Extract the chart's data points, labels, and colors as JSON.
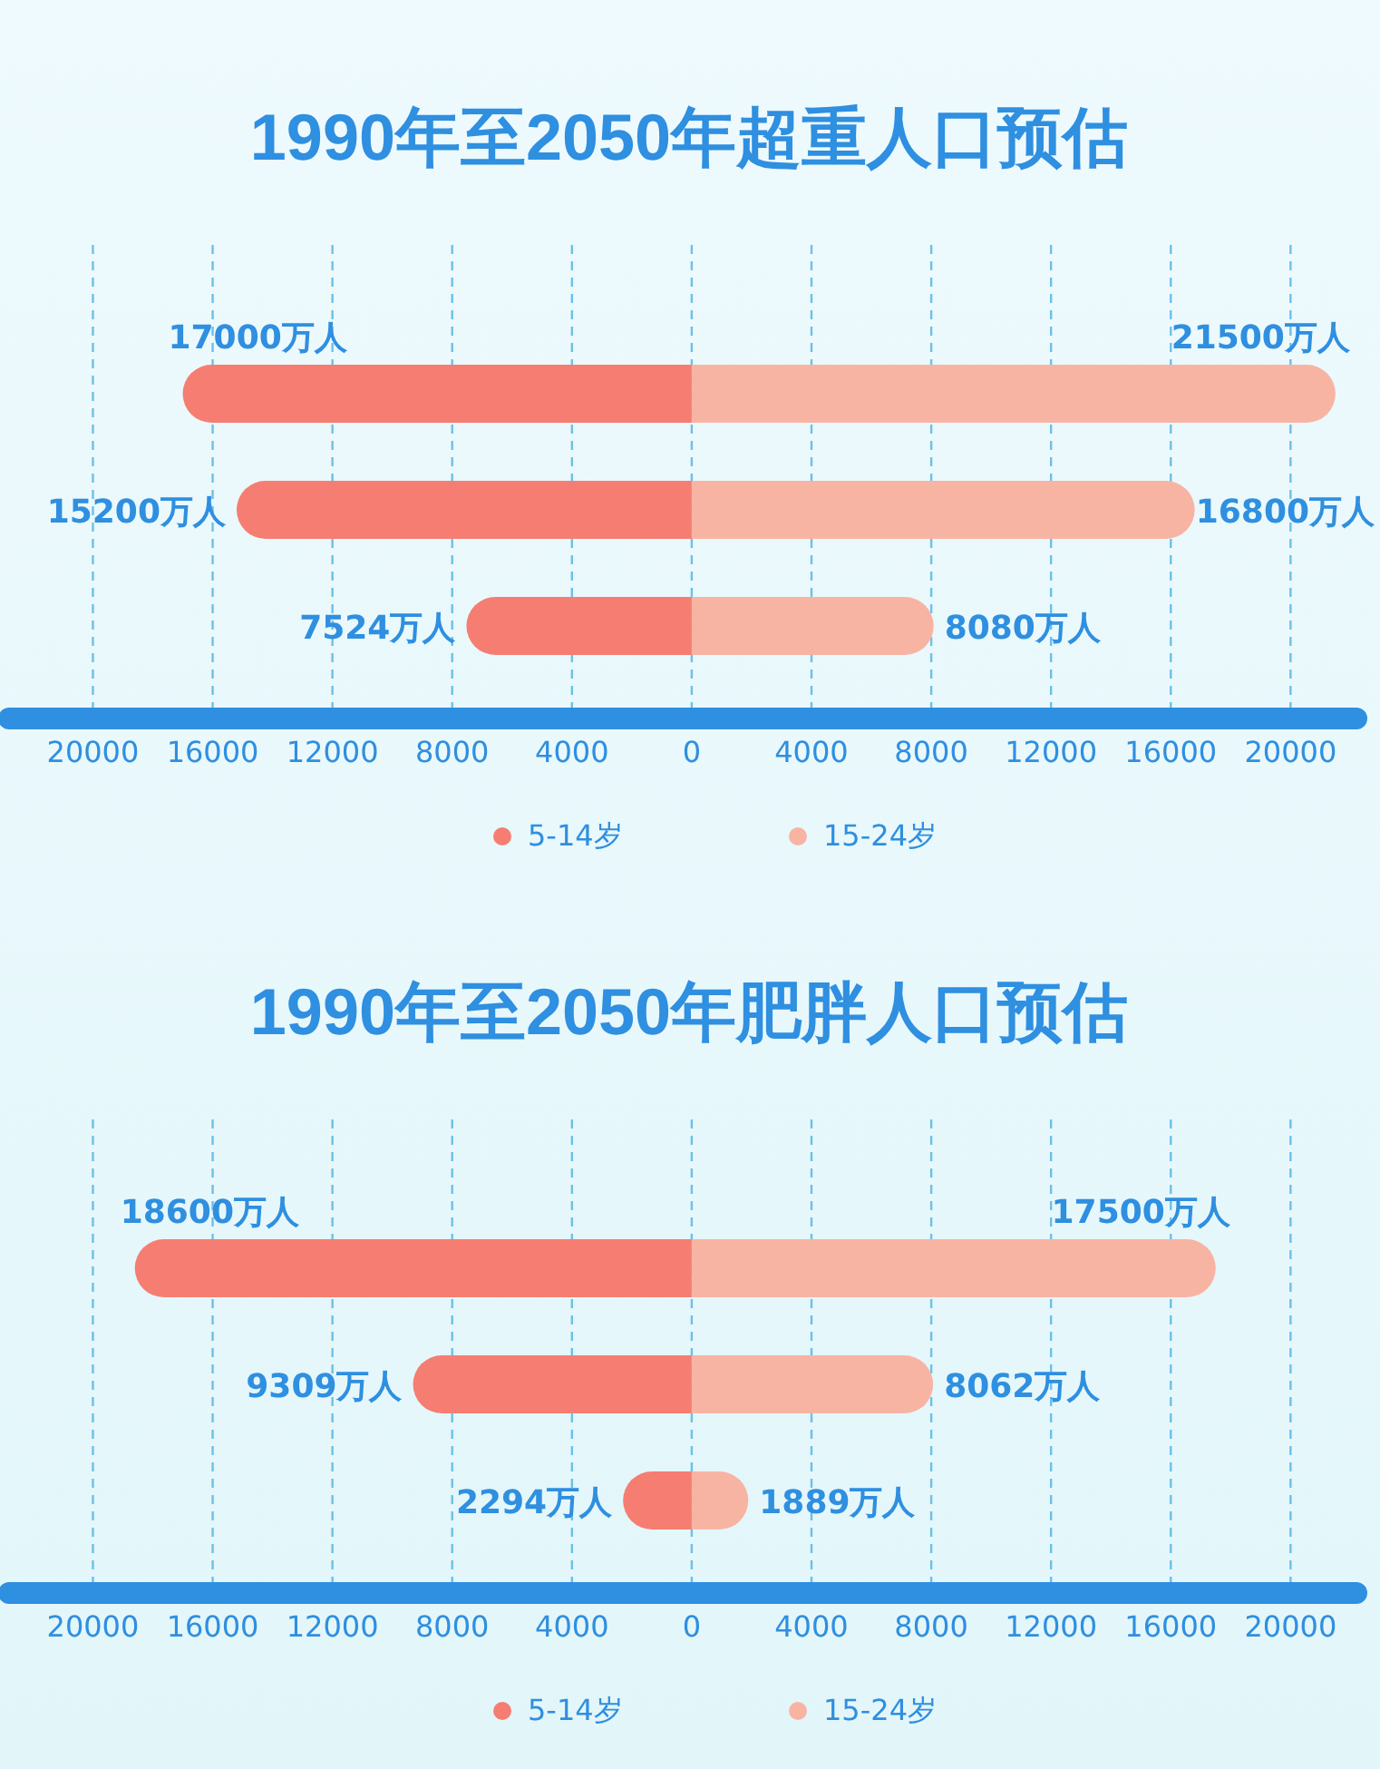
{
  "chart_data": [
    {
      "type": "bar",
      "orientation": "horizontal",
      "title": "1990年至2050年超重人口预估",
      "categories": [
        null,
        null,
        null
      ],
      "xlim": [
        -22800,
        22200
      ],
      "xticks": [
        {
          "value": -20000,
          "label": "20000"
        },
        {
          "value": -16000,
          "label": "16000"
        },
        {
          "value": -12000,
          "label": "12000"
        },
        {
          "value": -8000,
          "label": "8000"
        },
        {
          "value": -4000,
          "label": "4000"
        },
        0,
        4000,
        8000,
        12000,
        16000,
        20000
      ],
      "grid": "x",
      "legend": "bottom",
      "series": [
        {
          "name": "5-14岁",
          "color": "#f67d72",
          "values": [
            17000,
            15200,
            7524
          ],
          "base": [
            -17000,
            -15200,
            -7524
          ],
          "value_labels": [
            "17000万人",
            "15200万人",
            "7524万人"
          ]
        },
        {
          "name": "15-24岁",
          "color": "#f8b4a3",
          "values": [
            21500,
            16800,
            8080
          ],
          "value_labels": [
            "21500万人",
            "16800万人",
            "8080万人"
          ]
        }
      ]
    },
    {
      "type": "bar",
      "orientation": "horizontal",
      "title": "1990年至2050年肥胖人口预估",
      "categories": [
        null,
        null,
        null
      ],
      "xlim": [
        -22800,
        22200
      ],
      "xticks": [
        {
          "value": -20000,
          "label": "20000"
        },
        {
          "value": -16000,
          "label": "16000"
        },
        {
          "value": -12000,
          "label": "12000"
        },
        {
          "value": -8000,
          "label": "8000"
        },
        {
          "value": -4000,
          "label": "4000"
        },
        0,
        4000,
        8000,
        12000,
        16000,
        20000
      ],
      "grid": "x",
      "legend": "bottom",
      "series": [
        {
          "name": "5-14岁",
          "color": "#f67d72",
          "values": [
            18600,
            9309,
            2294
          ],
          "base": [
            -18600,
            -9309,
            -2294
          ],
          "value_labels": [
            "18600万人",
            "9309万人",
            "2294万人"
          ]
        },
        {
          "name": "15-24岁",
          "color": "#f8b4a3",
          "values": [
            17500,
            8062,
            1889
          ],
          "value_labels": [
            "17500万人",
            "8062万人",
            "1889万人"
          ]
        }
      ]
    }
  ]
}
